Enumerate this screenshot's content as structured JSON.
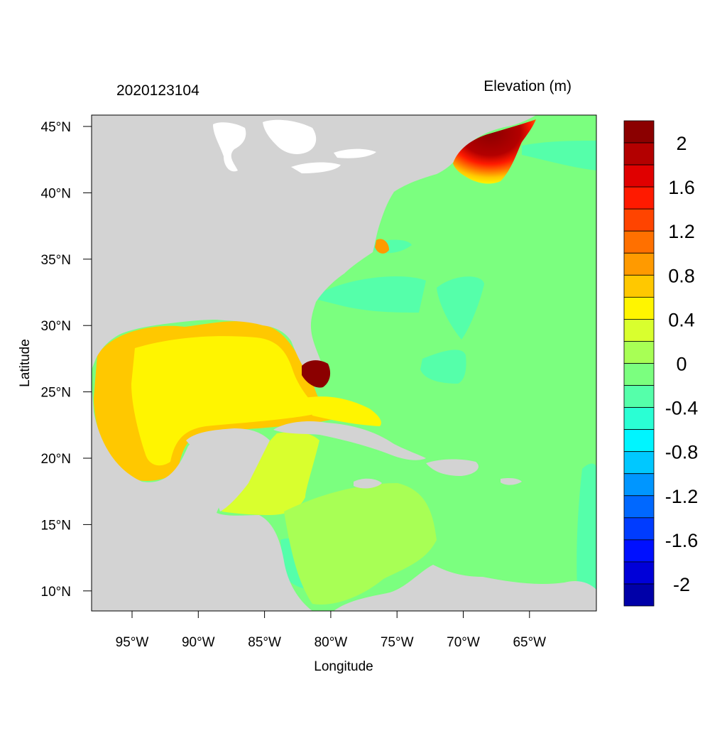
{
  "title_left": "2020123104",
  "title_right": "Elevation (m)",
  "axes": {
    "xlabel": "Longitude",
    "ylabel": "Latitude",
    "x_ticks": [
      "95°W",
      "90°W",
      "85°W",
      "80°W",
      "75°W",
      "70°W",
      "65°W"
    ],
    "y_ticks": [
      "45°N",
      "40°N",
      "35°N",
      "30°N",
      "25°N",
      "20°N",
      "15°N",
      "10°N"
    ]
  },
  "colorbar": {
    "labels": [
      "2",
      "1.6",
      "1.2",
      "0.8",
      "0.4",
      "0",
      "-0.4",
      "-0.8",
      "-1.2",
      "-1.6",
      "-2"
    ],
    "colors": [
      "#8b0000",
      "#b30000",
      "#e00000",
      "#ff1a00",
      "#ff4400",
      "#ff7000",
      "#ff9a00",
      "#ffc800",
      "#fff500",
      "#d9ff2e",
      "#a8ff55",
      "#7bff7f",
      "#55ffaa",
      "#2affd4",
      "#00f5ff",
      "#00c8ff",
      "#0096ff",
      "#0068ff",
      "#003cff",
      "#0010ff",
      "#0000d8",
      "#0000a8"
    ]
  },
  "map_colors": {
    "land": "#d3d3d3",
    "lake": "#ffffff",
    "zero": "#7bff7f",
    "neg": "#55ffaa",
    "gulf": "#fff500",
    "gulf_edge": "#ffc800",
    "carib_w": "#d9ff2e",
    "carib_c": "#a8ff55",
    "surge": "#8b0000"
  }
}
